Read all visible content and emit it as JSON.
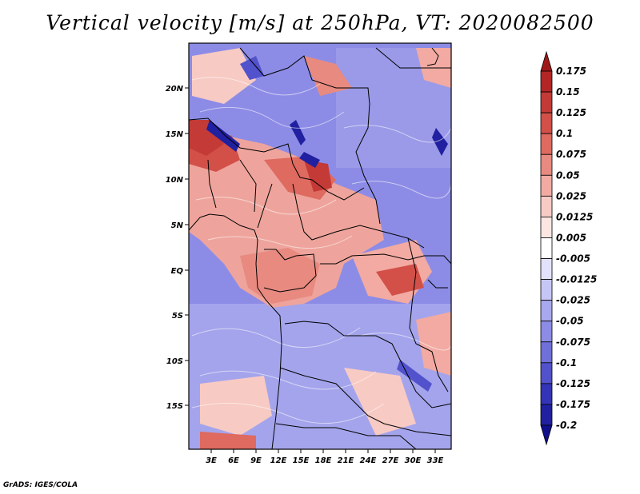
{
  "title": "Vertical velocity [m/s] at 250hPa, VT: 2020082500",
  "footer": "GrADS: IGES/COLA",
  "map": {
    "lat_labels": [
      "20N",
      "15N",
      "10N",
      "5N",
      "EQ",
      "5S",
      "10S",
      "15S"
    ],
    "lon_labels": [
      "3E",
      "6E",
      "9E",
      "12E",
      "15E",
      "18E",
      "21E",
      "24E",
      "27E",
      "30E",
      "33E"
    ]
  },
  "colorbar": {
    "labels": [
      "0.175",
      "0.15",
      "0.125",
      "0.1",
      "0.075",
      "0.05",
      "0.025",
      "0.0125",
      "0.005",
      "-0.005",
      "-0.0125",
      "-0.025",
      "-0.05",
      "-0.075",
      "-0.1",
      "-0.125",
      "-0.175",
      "-0.2"
    ],
    "colors": [
      "#a01818",
      "#b42626",
      "#c43a36",
      "#d25048",
      "#de6a60",
      "#e88a80",
      "#f2aaa2",
      "#f8cac4",
      "#fde6e2",
      "#ffffff",
      "#e2e2fc",
      "#c6c6f6",
      "#a8a8ee",
      "#8c8ce6",
      "#7070da",
      "#5252cc",
      "#3434b8",
      "#2020a0",
      "#10108a"
    ]
  }
}
